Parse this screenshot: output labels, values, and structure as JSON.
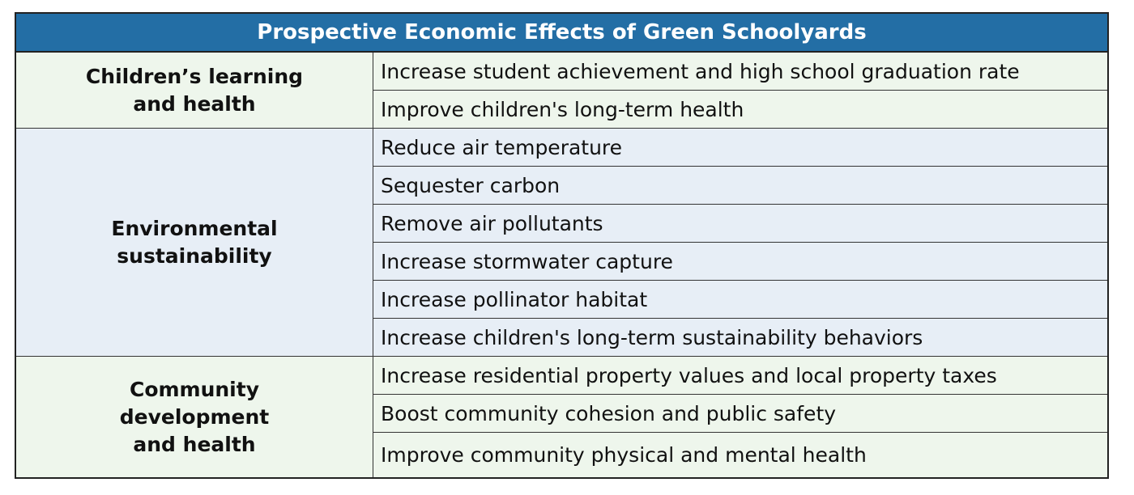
{
  "title": "Prospective Economic Effects of Green Schoolyards",
  "groups": [
    {
      "category_lines": [
        "Children’s learning",
        "and health"
      ],
      "effects": [
        "Increase student achievement and high school graduation rate",
        "Improve children's long-term health"
      ]
    },
    {
      "category_lines": [
        "Environmental",
        "sustainability"
      ],
      "effects": [
        "Reduce air temperature",
        "Sequester carbon",
        "Remove air pollutants",
        "Increase stormwater capture",
        "Increase pollinator habitat",
        "Increase children's long-term sustainability behaviors"
      ]
    },
    {
      "category_lines": [
        "Community",
        "development",
        "and health"
      ],
      "effects": [
        "Increase residential property values and local property taxes",
        "Boost community cohesion and public safety",
        "Improve community physical and mental health"
      ]
    }
  ],
  "colors": {
    "header": "#236ea5",
    "green_band": "#eef6ec",
    "blue_band": "#e7eef6"
  }
}
